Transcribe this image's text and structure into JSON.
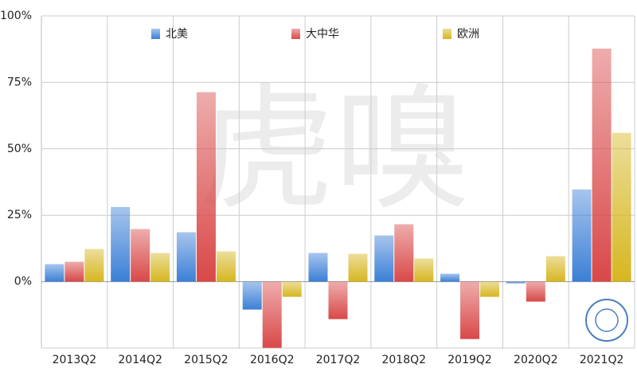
{
  "chart_data": {
    "type": "bar",
    "watermark": "虎嗅",
    "categories": [
      "2013Q2",
      "2014Q2",
      "2015Q2",
      "2016Q2",
      "2017Q2",
      "2018Q2",
      "2019Q2",
      "2020Q2",
      "2021Q2"
    ],
    "series": [
      {
        "name": "北美",
        "color": "#3b7fd6",
        "values": [
          6.6,
          28.1,
          18.6,
          -10.5,
          10.8,
          17.4,
          3.0,
          -0.6,
          34.7
        ]
      },
      {
        "name": "大中华",
        "color": "#d94848",
        "values": [
          7.5,
          19.8,
          71.3,
          -24.9,
          -14.1,
          21.6,
          -21.6,
          -7.5,
          87.7
        ]
      },
      {
        "name": "欧洲",
        "color": "#d6b620",
        "values": [
          12.3,
          10.8,
          11.4,
          -5.7,
          10.5,
          8.7,
          -5.7,
          9.6,
          56.0
        ]
      }
    ],
    "ylim": [
      -25,
      100
    ],
    "yticks": [
      {
        "value": 0,
        "label": "0%"
      },
      {
        "value": 25,
        "label": "25%"
      },
      {
        "value": 50,
        "label": "50%"
      },
      {
        "value": 75,
        "label": "75%"
      },
      {
        "value": 100,
        "label": "100%"
      }
    ],
    "grid": true
  }
}
